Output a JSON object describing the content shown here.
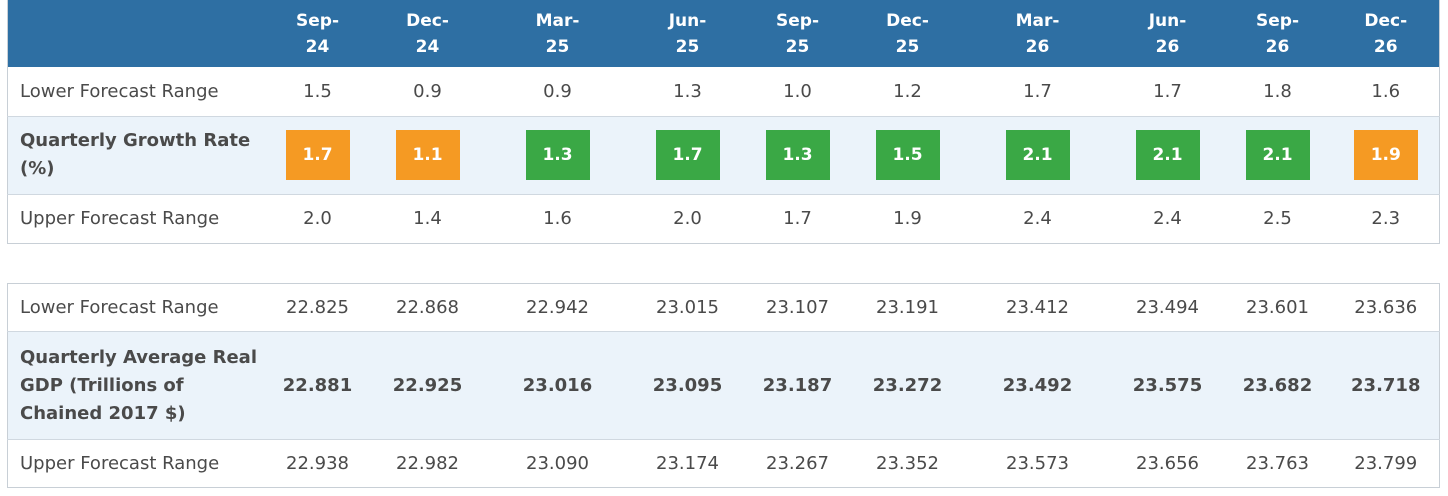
{
  "quarters": [
    {
      "month": "Sep-",
      "year": "24"
    },
    {
      "month": "Dec-",
      "year": "24"
    },
    {
      "month": "Mar-",
      "year": "25"
    },
    {
      "month": "Jun-",
      "year": "25"
    },
    {
      "month": "Sep-",
      "year": "25"
    },
    {
      "month": "Dec-",
      "year": "25"
    },
    {
      "month": "Mar-",
      "year": "26"
    },
    {
      "month": "Jun-",
      "year": "26"
    },
    {
      "month": "Sep-",
      "year": "26"
    },
    {
      "month": "Dec-",
      "year": "26"
    }
  ],
  "growth_table": {
    "lower": {
      "label": "Lower Forecast Range",
      "values": [
        "1.5",
        "0.9",
        "0.9",
        "1.3",
        "1.0",
        "1.2",
        "1.7",
        "1.7",
        "1.8",
        "1.6"
      ]
    },
    "rate": {
      "label": "Quarterly Growth Rate (%)",
      "values": [
        "1.7",
        "1.1",
        "1.3",
        "1.7",
        "1.3",
        "1.5",
        "2.1",
        "2.1",
        "2.1",
        "1.9"
      ],
      "box_colors": [
        "#f59a23",
        "#f59a23",
        "#3aa845",
        "#3aa845",
        "#3aa845",
        "#3aa845",
        "#3aa845",
        "#3aa845",
        "#3aa845",
        "#f59a23"
      ]
    },
    "upper": {
      "label": "Upper Forecast Range",
      "values": [
        "2.0",
        "1.4",
        "1.6",
        "2.0",
        "1.7",
        "1.9",
        "2.4",
        "2.4",
        "2.5",
        "2.3"
      ]
    }
  },
  "gdp_table": {
    "lower": {
      "label": "Lower Forecast Range",
      "values": [
        "22.825",
        "22.868",
        "22.942",
        "23.015",
        "23.107",
        "23.191",
        "23.412",
        "23.494",
        "23.601",
        "23.636"
      ]
    },
    "average": {
      "label": "Quarterly Average Real GDP (Trillions of Chained 2017 $)",
      "values": [
        "22.881",
        "22.925",
        "23.016",
        "23.095",
        "23.187",
        "23.272",
        "23.492",
        "23.575",
        "23.682",
        "23.718"
      ]
    },
    "upper": {
      "label": "Upper Forecast Range",
      "values": [
        "22.938",
        "22.982",
        "23.090",
        "23.174",
        "23.267",
        "23.352",
        "23.573",
        "23.656",
        "23.763",
        "23.799"
      ]
    }
  },
  "colors": {
    "header_bg": "#2e6fa3",
    "shaded_row": "#ebf3fa",
    "growth_orange": "#f59a23",
    "growth_green": "#3aa845"
  }
}
